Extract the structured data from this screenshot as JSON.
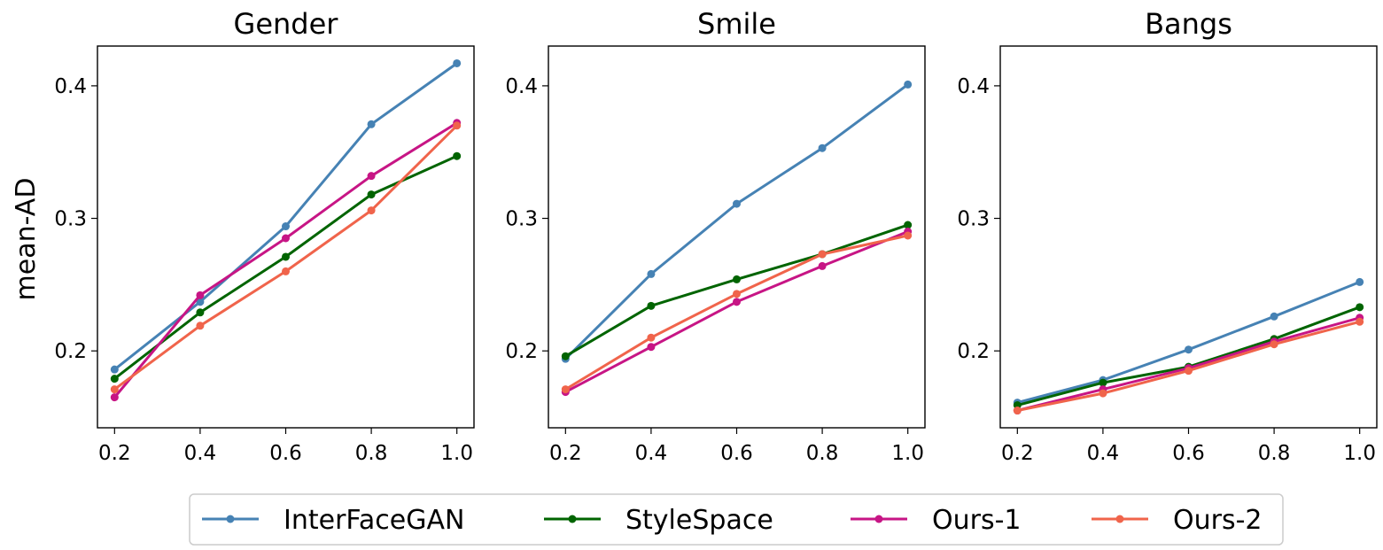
{
  "chart_data": {
    "type": "line",
    "ylabel": "mean-AD",
    "x": [
      0.2,
      0.4,
      0.6,
      0.8,
      1.0
    ],
    "x_tick_labels": [
      "0.2",
      "0.4",
      "0.6",
      "0.8",
      "1.0"
    ],
    "y_ticks": [
      0.2,
      0.3,
      0.4
    ],
    "y_tick_labels": [
      "0.2",
      "0.3",
      "0.4"
    ],
    "xlim": [
      0.16,
      1.04
    ],
    "ylim": [
      0.142,
      0.43
    ],
    "grid": false,
    "legend_placement": "bottom-center",
    "legend": [
      {
        "name": "InterFaceGAN",
        "color": "#4682B4"
      },
      {
        "name": "StyleSpace",
        "color": "#006400"
      },
      {
        "name": "Ours-1",
        "color": "#C71585"
      },
      {
        "name": "Ours-2",
        "color": "#F0644B"
      }
    ],
    "panels": [
      {
        "title": "Gender",
        "series": [
          {
            "name": "InterFaceGAN",
            "values": [
              0.186,
              0.237,
              0.294,
              0.371,
              0.417
            ]
          },
          {
            "name": "StyleSpace",
            "values": [
              0.179,
              0.229,
              0.271,
              0.318,
              0.347
            ]
          },
          {
            "name": "Ours-1",
            "values": [
              0.165,
              0.242,
              0.285,
              0.332,
              0.372
            ]
          },
          {
            "name": "Ours-2",
            "values": [
              0.171,
              0.219,
              0.26,
              0.306,
              0.37
            ]
          }
        ]
      },
      {
        "title": "Smile",
        "series": [
          {
            "name": "InterFaceGAN",
            "values": [
              0.194,
              0.258,
              0.311,
              0.353,
              0.401
            ]
          },
          {
            "name": "StyleSpace",
            "values": [
              0.196,
              0.234,
              0.254,
              0.273,
              0.295
            ]
          },
          {
            "name": "Ours-1",
            "values": [
              0.169,
              0.203,
              0.237,
              0.264,
              0.29
            ]
          },
          {
            "name": "Ours-2",
            "values": [
              0.171,
              0.21,
              0.243,
              0.273,
              0.287
            ]
          }
        ]
      },
      {
        "title": "Bangs",
        "series": [
          {
            "name": "InterFaceGAN",
            "values": [
              0.161,
              0.178,
              0.201,
              0.226,
              0.252
            ]
          },
          {
            "name": "StyleSpace",
            "values": [
              0.159,
              0.176,
              0.188,
              0.209,
              0.233
            ]
          },
          {
            "name": "Ours-1",
            "values": [
              0.155,
              0.171,
              0.187,
              0.207,
              0.225
            ]
          },
          {
            "name": "Ours-2",
            "values": [
              0.155,
              0.168,
              0.185,
              0.205,
              0.222
            ]
          }
        ]
      }
    ]
  }
}
